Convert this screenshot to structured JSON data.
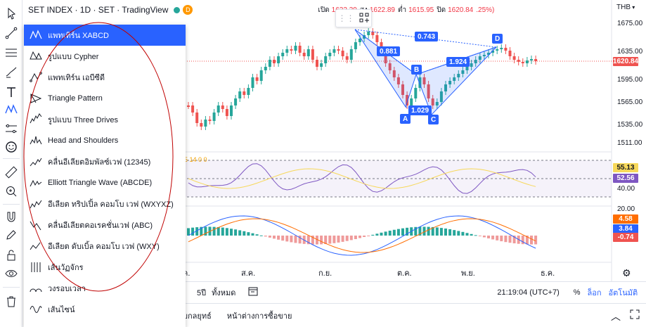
{
  "legend": {
    "symbol": "SET INDEX · 1D · SET · TradingView",
    "delay_badge": "D",
    "open_label": "เปิด",
    "open_value": "1622.39",
    "high_label": "สูง",
    "high_value": "1622.89",
    "low_label": "ต่ำ",
    "low_value": "1615.95",
    "close_label": "ปิด",
    "close_value": "1620.84",
    "change_fragment": ".25%)"
  },
  "price_scale": {
    "currency": "THB",
    "ticks": [
      "1675.00",
      "1635.00",
      "1595.00",
      "1565.00",
      "1535.00",
      "1511.00"
    ],
    "last_price": "1620.84",
    "rsi_ticks": [
      "40.00"
    ],
    "rsi_badges": [
      "55.13",
      "52.56"
    ],
    "macd_ticks": [
      "20.00"
    ],
    "macd_badges": [
      "4.58",
      "3.84",
      "-0.74"
    ]
  },
  "rsi_legend": "5  14  0  0",
  "pattern_labels": {
    "points": [
      "A",
      "B",
      "C",
      "D"
    ],
    "ratios": [
      "0.743",
      "0.881",
      "1.029",
      "1.924"
    ]
  },
  "time_axis": [
    "ค.",
    "ส.ค.",
    "ก.ย.",
    "ต.ค.",
    "พ.ย.",
    "ธ.ค."
  ],
  "bottom_toolbar": {
    "range_5y": "5ปี",
    "range_all": "ทั้งหมด",
    "clock": "21:19:04 (UTC+7)",
    "percent": "%",
    "log": "ล็อก",
    "auto": "อัตโนมัติ"
  },
  "panel_tabs": {
    "strategy": "บกลยุทธ์",
    "trading": "หน้าต่างการซื้อขาย"
  },
  "menu": {
    "items": [
      {
        "label": "แพทเทิร์น XABCD",
        "icon": "xabcd-pattern-icon",
        "selected": true
      },
      {
        "label": "รูปแบบ Cypher",
        "icon": "cypher-pattern-icon"
      },
      {
        "label": "แพทเทิร์น เอบีซีดี",
        "icon": "abcd-pattern-icon"
      },
      {
        "label": "Triangle Pattern",
        "icon": "triangle-pattern-icon"
      },
      {
        "label": "รูปแบบ Three Drives",
        "icon": "three-drives-pattern-icon"
      },
      {
        "label": "Head and Shoulders",
        "icon": "head-and-shoulders-icon"
      },
      {
        "label": "คลื่นอีเลียตอิมพัลซ์เวฟ (12345)",
        "icon": "elliott-impulse-wave-icon"
      },
      {
        "label": "Elliott Triangle Wave (ABCDE)",
        "icon": "elliott-triangle-wave-icon"
      },
      {
        "label": "อีเลียต ทริปเปิ้ล คอมโบ เวฟ (WXYXZ)",
        "icon": "elliott-triple-combo-icon"
      },
      {
        "label": "คลื่นอีเลียตคอเรคชั่นเวฟ (ABC)",
        "icon": "elliott-correction-wave-icon"
      },
      {
        "label": "อีเลียต ดับเบิ้ล คอมโบ เวฟ (WXY)",
        "icon": "elliott-double-combo-icon"
      },
      {
        "label": "เส้นวัฏจักร",
        "icon": "cyclic-lines-icon"
      },
      {
        "label": "วงรอบเวลา",
        "icon": "time-cycles-icon"
      },
      {
        "label": "เส้นไซน์",
        "icon": "sine-line-icon"
      }
    ]
  },
  "colors": {
    "accent": "#2962ff",
    "up": "#26a69a",
    "down": "#ef5350",
    "annotation": "#c00000"
  }
}
